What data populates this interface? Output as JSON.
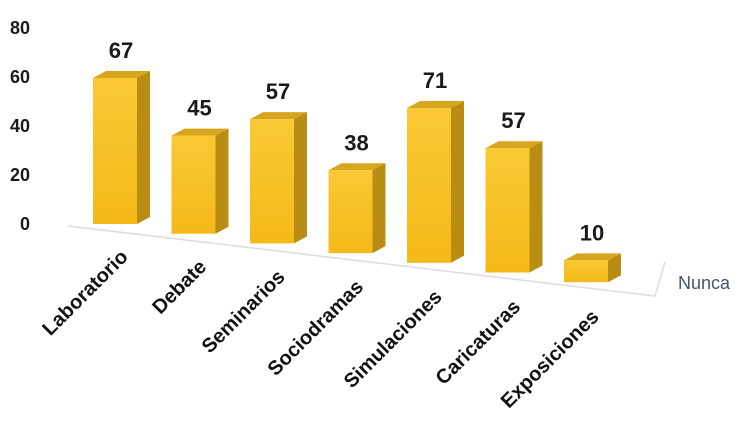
{
  "chart_data": {
    "type": "bar",
    "style": "3d-column",
    "categories": [
      "Laboratorio",
      "Debate",
      "Seminarios",
      "Sociodramas",
      "Simulaciones",
      "Caricaturas",
      "Exposiciones"
    ],
    "series": [
      {
        "name": "Nunca",
        "values": [
          67,
          45,
          57,
          38,
          71,
          57,
          10
        ]
      }
    ],
    "y_ticks": [
      "0",
      "20",
      "40",
      "60",
      "80"
    ],
    "ylim": [
      0,
      80
    ],
    "data_labels": true,
    "colors": {
      "bar_front": "#f7c023",
      "bar_side": "#b98d14",
      "bar_top": "#d8a61e",
      "floor": "#dcdcdc",
      "series_label": "#44546a"
    }
  }
}
